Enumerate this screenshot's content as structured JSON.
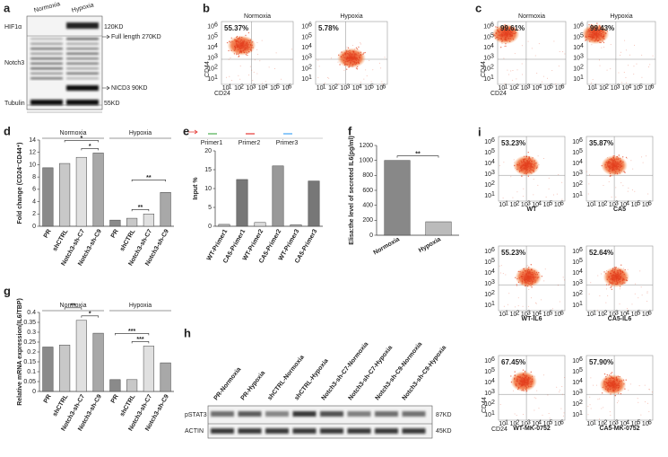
{
  "panels": {
    "a": {
      "label": "a",
      "columns": [
        "Normoxia",
        "Hypoxia"
      ],
      "rows": [
        "HIF1α",
        "Notch3",
        "Tubulin"
      ],
      "markers": [
        "120KD",
        "Full length 270KD",
        "NICD3 90KD",
        "55KD"
      ]
    },
    "b": {
      "label": "b",
      "plots": [
        {
          "title": "Normoxia",
          "percent": "55.37%"
        },
        {
          "title": "Hypoxia",
          "percent": "5.78%"
        }
      ],
      "y_axis": "CD44",
      "x_axis": "CD24"
    },
    "c": {
      "label": "c",
      "plots": [
        {
          "title": "Normoxia",
          "percent": "99.61%"
        },
        {
          "title": "Hypoxia",
          "percent": "99.43%"
        }
      ],
      "y_axis": "CD44",
      "x_axis": "CD24"
    },
    "h": {
      "label": "h",
      "lanes": [
        "PR-Normoxia",
        "PR-Hypoxia",
        "shCTRL-Normoxia",
        "shCTRL-Hypoxia",
        "Notch3-sh-C7-Normoxia",
        "Notch3-sh-C7-Hypoxia",
        "Notch3-sh-C9-Normoxia",
        "Notch3-sh-C9-Hypoxia"
      ],
      "rows": [
        "pSTAT3",
        "ACTIN"
      ],
      "markers": [
        "87KD",
        "45KD"
      ]
    },
    "i": {
      "label": "i",
      "plots": [
        {
          "title": "WT",
          "percent": "53.23%"
        },
        {
          "title": "CA5",
          "percent": "35.87%"
        },
        {
          "title": "WT-IL6",
          "percent": "55.23%"
        },
        {
          "title": "CA5-IL6",
          "percent": "52.64%"
        },
        {
          "title": "WT-MK-0752",
          "percent": "67.45%"
        },
        {
          "title": "CA5-MK-0752",
          "percent": "57.90%"
        }
      ],
      "y_axis": "CD44",
      "x_axis": "CD24"
    }
  },
  "flow_axis": {
    "base": "10",
    "exponents": [
      "1",
      "2",
      "3",
      "4",
      "5",
      "6"
    ]
  },
  "chart_data": [
    {
      "type": "bar",
      "label": "d",
      "y_label": "Fold change (CD24⁻CD44⁺)",
      "groups": [
        "Normoxia",
        "Hypoxia"
      ],
      "categories": [
        "PR",
        "shCTRL",
        "Notch3-sh-C7",
        "Notch3-sh-C9",
        "PR",
        "shCTRL",
        "Notch3-sh-C7",
        "Notch3-sh-C9"
      ],
      "values": [
        9.5,
        10.2,
        11.2,
        11.9,
        1.0,
        1.3,
        2.0,
        5.5
      ],
      "colors": [
        "#8a8a8a",
        "#c8c8c8",
        "#e0e0e0",
        "#a8a8a8",
        "#8a8a8a",
        "#c8c8c8",
        "#e0e0e0",
        "#a8a8a8"
      ],
      "ylim": [
        0,
        14
      ],
      "yticks": [
        0,
        2,
        4,
        6,
        8,
        10,
        12,
        14
      ],
      "annotations": [
        "*",
        "*",
        "**",
        "**"
      ]
    },
    {
      "type": "bar",
      "label": "e",
      "y_label": "Input %",
      "legend": [
        "Primer1",
        "Primer2",
        "Primer3"
      ],
      "legend_colors": [
        "#4caf50",
        "#e53935",
        "#42a5f5"
      ],
      "categories": [
        "WT-Primer1",
        "CA5-Primer1",
        "WT-Primer2",
        "CA5-Primer2",
        "WT-Primer3",
        "CA5-Primer3"
      ],
      "values": [
        0.5,
        12.4,
        1.0,
        16.0,
        0.4,
        12.0
      ],
      "colors": [
        "#bbbbbb",
        "#777777",
        "#dddddd",
        "#999999",
        "#bbbbbb",
        "#777777"
      ],
      "ylim": [
        0,
        20
      ],
      "yticks": [
        0,
        5,
        10,
        15,
        20
      ]
    },
    {
      "type": "bar",
      "label": "f",
      "y_label": "Elisa:the level of secreted IL6(pg/ml)",
      "categories": [
        "Normoxia",
        "Hypoxia"
      ],
      "values": [
        1000,
        180
      ],
      "colors": [
        "#888888",
        "#bbbbbb"
      ],
      "ylim": [
        0,
        1200
      ],
      "yticks": [
        0,
        200,
        400,
        600,
        800,
        1000,
        1200
      ],
      "annotations": [
        "**"
      ]
    },
    {
      "type": "bar",
      "label": "g",
      "y_label": "Relative mRNA expression(IL6/TBP)",
      "groups": [
        "Normoxia",
        "Hypoxia"
      ],
      "categories": [
        "PR",
        "shCTRL",
        "Notch3-sh-C7",
        "Notch3-sh-C9",
        "PR",
        "shCTRL",
        "Notch3-sh-C7",
        "Notch3-sh-C9"
      ],
      "values": [
        0.225,
        0.235,
        0.36,
        0.295,
        0.06,
        0.06,
        0.23,
        0.145
      ],
      "colors": [
        "#8a8a8a",
        "#c8c8c8",
        "#e0e0e0",
        "#a8a8a8",
        "#8a8a8a",
        "#c8c8c8",
        "#e0e0e0",
        "#a8a8a8"
      ],
      "ylim": [
        0,
        0.4
      ],
      "yticks": [
        0,
        0.05,
        0.1,
        0.15,
        0.2,
        0.25,
        0.3,
        0.35,
        0.4
      ],
      "annotations": [
        "*",
        "**",
        "***",
        "***"
      ]
    }
  ]
}
